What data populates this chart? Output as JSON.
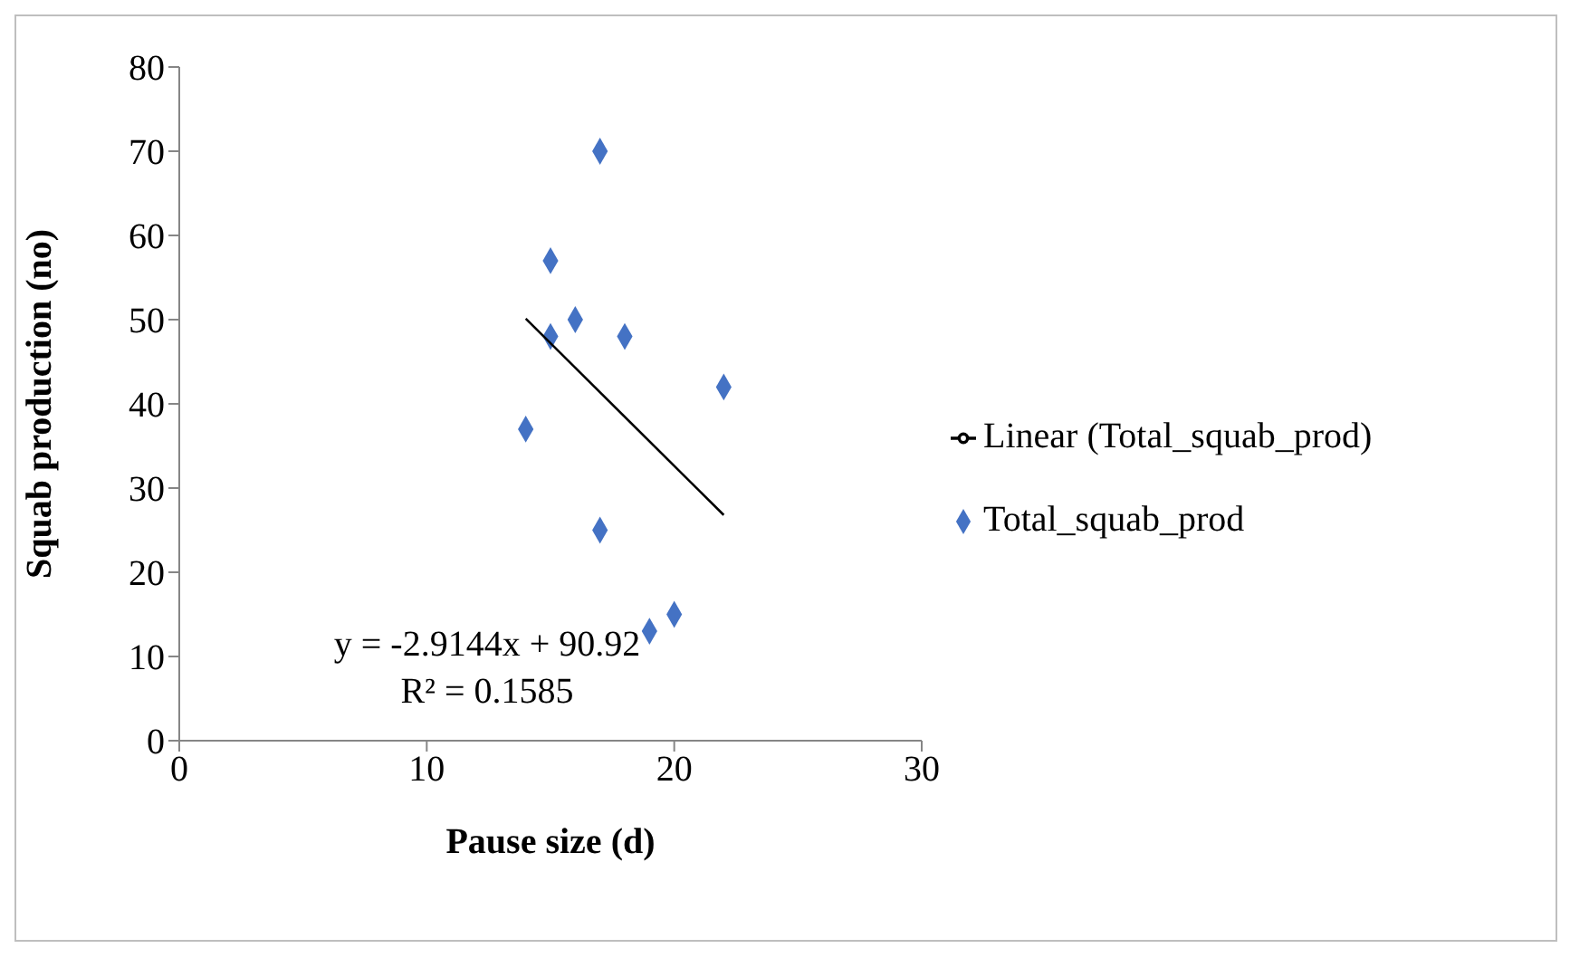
{
  "chart_data": {
    "type": "scatter",
    "xlabel": "Pause size (d)",
    "ylabel": "Squab production (no)",
    "xlim": [
      0,
      30
    ],
    "xticks": [
      0,
      10,
      20,
      30
    ],
    "ylim": [
      0,
      80
    ],
    "yticks": [
      0,
      10,
      20,
      30,
      40,
      50,
      60,
      70,
      80
    ],
    "grid": false,
    "legend": "right",
    "marker": "diamond",
    "series": [
      {
        "name": "Total_squab_prod",
        "color": "#4472c4",
        "x": [
          17,
          15,
          16,
          15,
          18,
          22,
          14,
          17,
          19,
          20
        ],
        "values": [
          70,
          57,
          50,
          48,
          48,
          42,
          37,
          25,
          13,
          15
        ]
      },
      {
        "name": "Linear (Total_squab_prod)",
        "type": "line",
        "color": "#000000",
        "line_style": "solid",
        "marker": "none",
        "x": [
          14,
          22
        ],
        "values": [
          50.12,
          26.8
        ]
      }
    ],
    "annotations": [
      "y = -2.9144x + 90.92",
      "R² = 0.1585"
    ]
  }
}
